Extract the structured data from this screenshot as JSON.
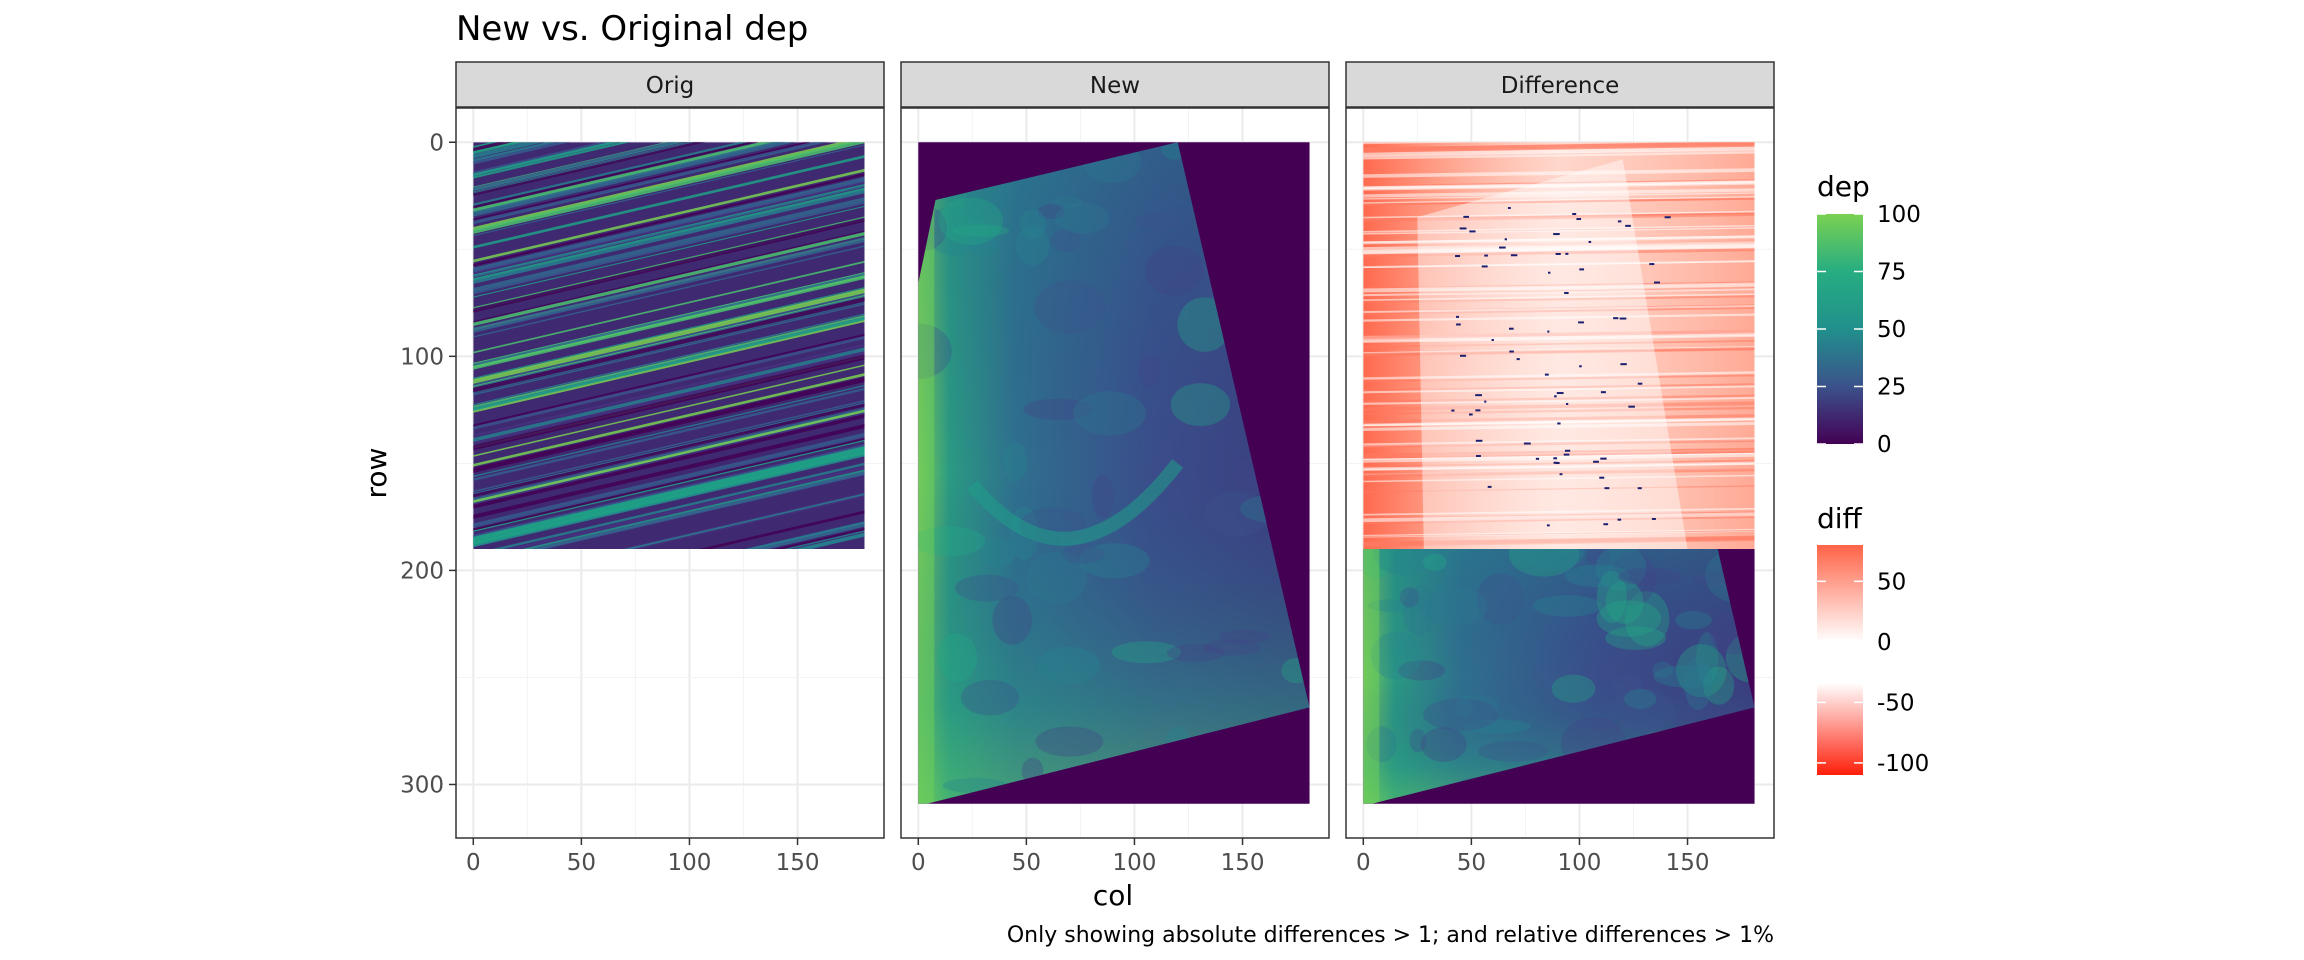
{
  "chart_data": {
    "type": "heatmap",
    "title": "New vs. Original dep",
    "xlabel": "col",
    "ylabel": "row",
    "caption": "Only showing absolute differences > 1; and relative differences > 1%",
    "x_ticks": [
      "0",
      "50",
      "100",
      "150"
    ],
    "y_ticks": [
      "0",
      "100",
      "200",
      "300"
    ],
    "x_tick_values": [
      0,
      50,
      100,
      150
    ],
    "y_tick_values": [
      0,
      100,
      200,
      300
    ],
    "xlim": [
      -8,
      190
    ],
    "ylim": [
      325,
      -16
    ],
    "grid": true,
    "panels": [
      {
        "label": "Orig",
        "description": "dep raster, cols 0-181, rows 0-190; thin diagonal streaks sloping downward to the left"
      },
      {
        "label": "New",
        "description": "dep raster, cols 0-181, rows 0-309; trapezoid of data (top edge row ~27 at col 8 to row 0 at col 120, right edge to row ~264 at col 181, bottom edge to row ~309 at col 0) on dark background"
      },
      {
        "label": "Difference",
        "description": "rows 0-190 show diff (mostly red, white where diff ~ 0, small dark blue specks); rows 190-309 show the New dep raster"
      }
    ],
    "legends": [
      {
        "title": "dep",
        "scale": "viridis",
        "range": [
          0,
          100
        ],
        "labels": [
          "100",
          "75",
          "50",
          "25",
          "0"
        ],
        "values": [
          100,
          75,
          50,
          25,
          0
        ],
        "colors": [
          "#440154",
          "#3b528b",
          "#21908c",
          "#5ec962",
          "#7ad151"
        ]
      },
      {
        "title": "diff",
        "scale": "diverging red-white-red",
        "range": [
          -110,
          80
        ],
        "labels": [
          "50",
          "0",
          "-50",
          "-100"
        ],
        "values": [
          50,
          0,
          -50,
          -100
        ],
        "colors": [
          "#ff2a10",
          "#ffffff",
          "#ff6347"
        ]
      }
    ]
  }
}
